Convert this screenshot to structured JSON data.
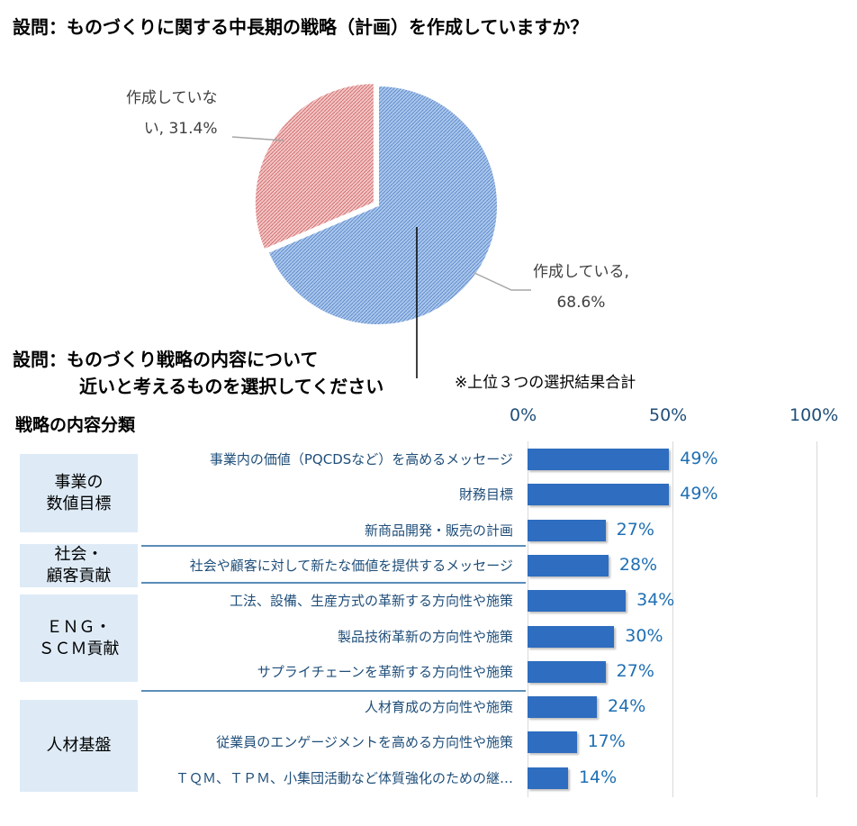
{
  "question1": {
    "title": "設問：ものづくりに関する中長期の戦略（計画）を作成していますか？"
  },
  "chart_data": [
    {
      "type": "pie",
      "slices": [
        {
          "label_line1": "作成している,",
          "label_line2": "68.6%",
          "value": 68.6,
          "color": "#8fb4e3"
        },
        {
          "label_line1": "作成していな",
          "label_line2": "い, 31.4%",
          "value": 31.4,
          "color": "#e8a6a6"
        }
      ]
    },
    {
      "type": "bar",
      "orientation": "horizontal",
      "xlim": [
        0,
        100
      ],
      "ticks": [
        "0%",
        "50%",
        "100%"
      ],
      "categories": [
        "事業内の価値（PQCDSなど）を高めるメッセージ",
        "財務目標",
        "新商品開発・販売の計画",
        "社会や顧客に対して新たな価値を提供するメッセージ",
        "工法、設備、生産方式の革新する方向性や施策",
        "製品技術革新の方向性や施策",
        "サプライチェーンを革新する方向性や施策",
        "人材育成の方向性や施策",
        "従業員のエンゲージメントを高める方向性や施策",
        "ＴＱＭ、ＴＰＭ、小集団活動など体質強化のための継…"
      ],
      "values": [
        49,
        49,
        27,
        28,
        34,
        30,
        27,
        24,
        17,
        14
      ],
      "value_labels": [
        "49%",
        "49%",
        "27%",
        "28%",
        "34%",
        "30%",
        "27%",
        "24%",
        "17%",
        "14%"
      ],
      "bar_color": "#2e6dbf"
    }
  ],
  "question2": {
    "title_line1": "設問：ものづくり戦略の内容について",
    "title_line2": "近いと考えるものを選択してください",
    "note": "※上位３つの選択結果合計",
    "section_title": "戦略の内容分類"
  },
  "groups": [
    {
      "line1": "事業の",
      "line2": "数値目標"
    },
    {
      "line1": "社会・",
      "line2": "顧客貢献"
    },
    {
      "line1": "ＥＮＧ・",
      "line2": "ＳＣＭ貢献"
    },
    {
      "line1": "人材基盤",
      "line2": ""
    }
  ]
}
